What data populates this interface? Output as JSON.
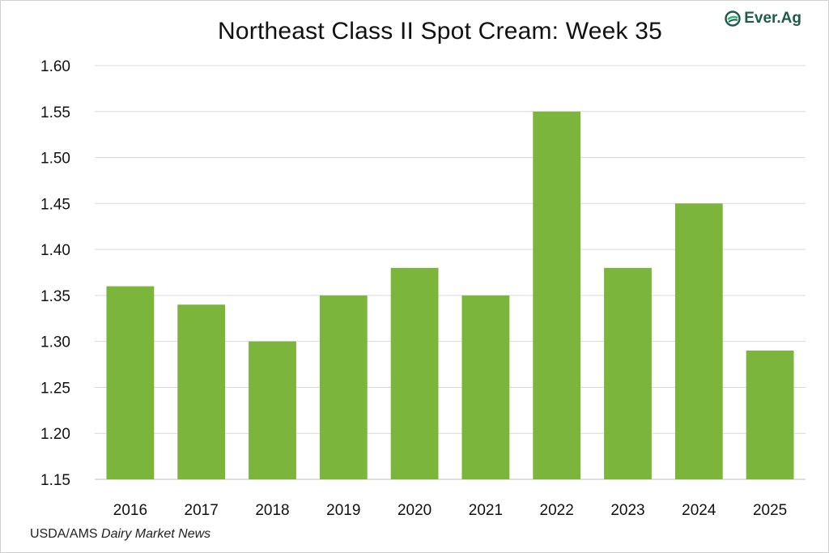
{
  "brand": {
    "logo_text": "Ever.Ag",
    "logo_icon": "ever-ag-leaf-icon",
    "logo_color": "#1d5c4a",
    "accent_color": "#2bb673"
  },
  "source": {
    "prefix": "USDA/AMS ",
    "publication": "Dairy Market News"
  },
  "chart_data": {
    "type": "bar",
    "title": "Northeast Class II Spot Cream: Week 35",
    "xlabel": "",
    "ylabel": "",
    "categories": [
      "2016",
      "2017",
      "2018",
      "2019",
      "2020",
      "2021",
      "2022",
      "2023",
      "2024",
      "2025"
    ],
    "values": [
      1.36,
      1.34,
      1.3,
      1.35,
      1.38,
      1.35,
      1.55,
      1.38,
      1.45,
      1.29
    ],
    "ylim": [
      1.15,
      1.6
    ],
    "yticks": [
      "1.15",
      "1.20",
      "1.25",
      "1.30",
      "1.35",
      "1.40",
      "1.45",
      "1.50",
      "1.55",
      "1.60"
    ],
    "grid": true,
    "legend": "none",
    "bar_color": "#7cb53b",
    "grid_color": "#d9d9d9"
  }
}
